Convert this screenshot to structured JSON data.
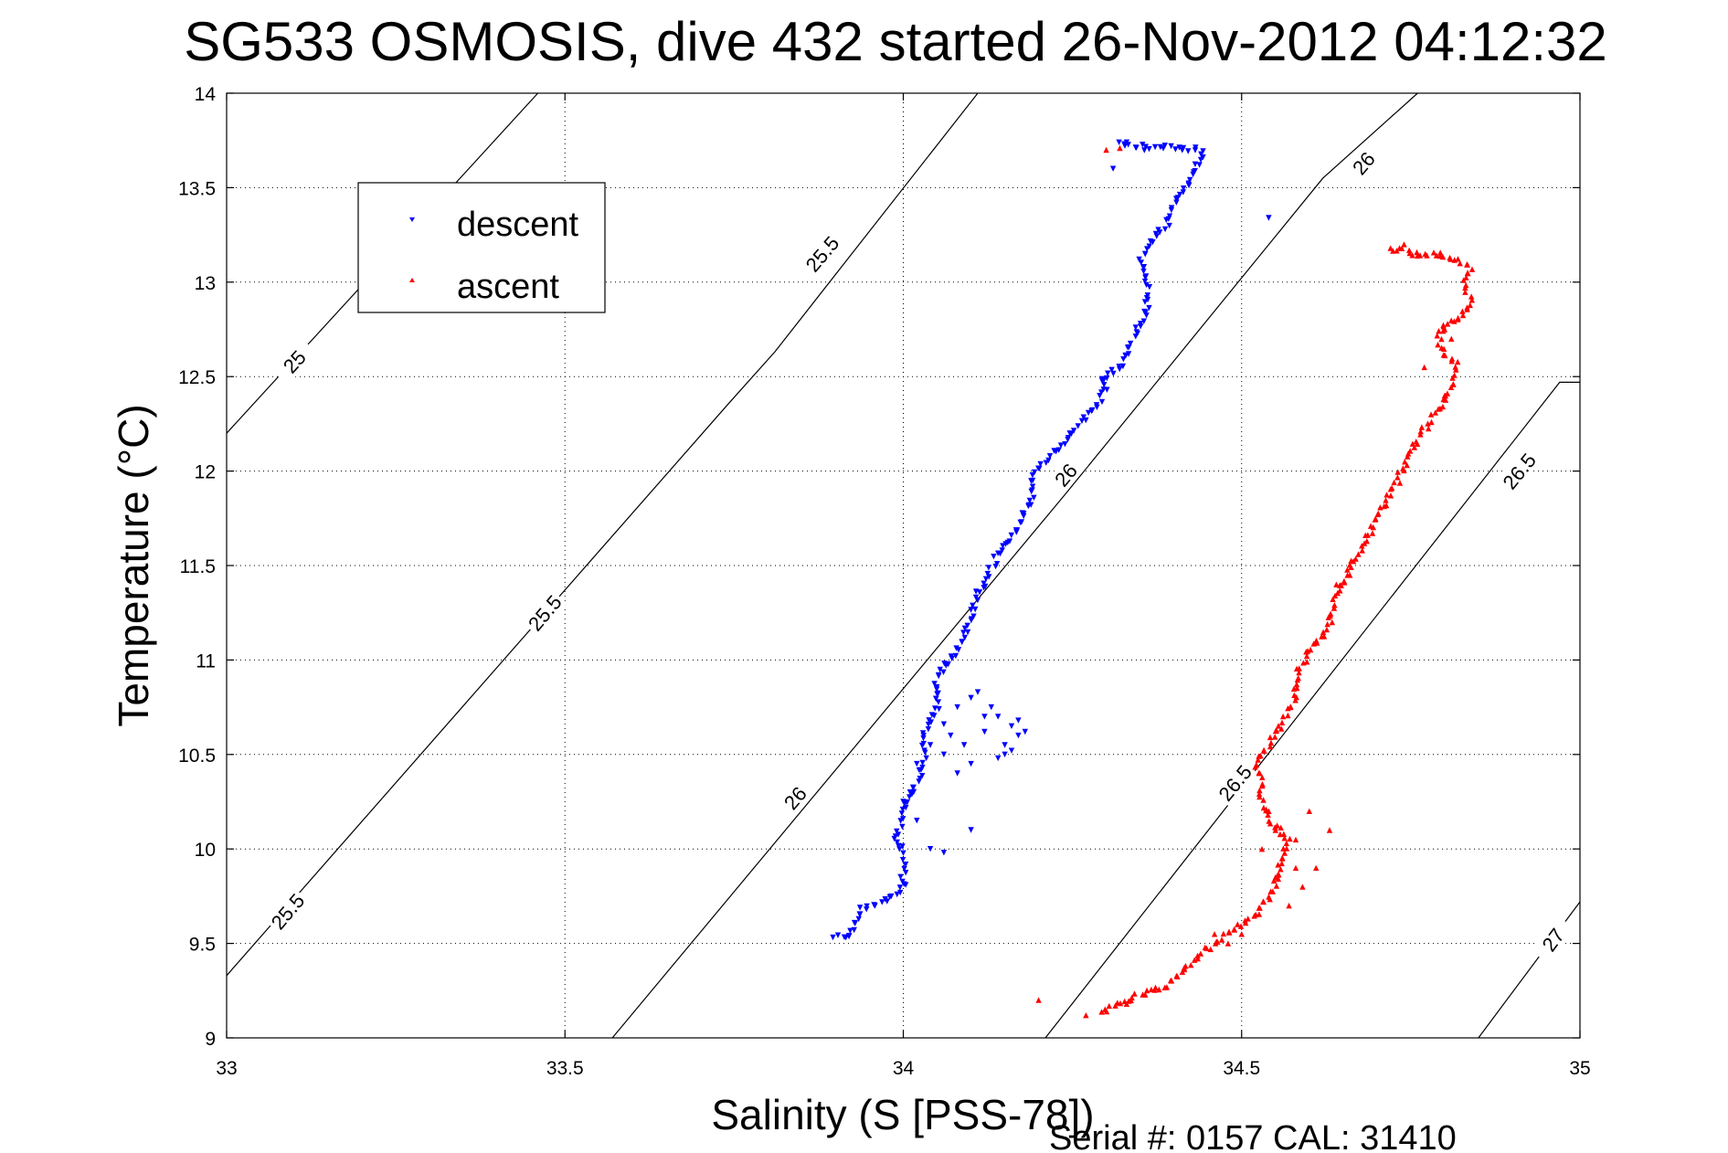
{
  "chart_data": {
    "type": "scatter",
    "title": "SG533 OSMOSIS, dive 432 started 26-Nov-2012 04:12:32",
    "xlabel": "Salinity (S [PSS-78])",
    "ylabel": "Temperature (°C)",
    "footer": "Serial #: 0157  CAL: 31410",
    "xlim": [
      33,
      35
    ],
    "ylim": [
      9,
      14
    ],
    "xticks": [
      "33",
      "33.5",
      "34",
      "34.5",
      "35"
    ],
    "yticks": [
      "9",
      "9.5",
      "10",
      "10.5",
      "11",
      "11.5",
      "12",
      "12.5",
      "13",
      "13.5",
      "14"
    ],
    "grid": true,
    "legend_position": "top-left",
    "series": [
      {
        "name": "descent",
        "marker": "triangle-down",
        "color": "#0000ff",
        "trace": [
          [
            33.9,
            9.53
          ],
          [
            33.92,
            9.53
          ],
          [
            33.94,
            9.68
          ],
          [
            33.97,
            9.72
          ],
          [
            34.0,
            9.8
          ],
          [
            34.0,
            9.97
          ],
          [
            33.99,
            10.05
          ],
          [
            34.0,
            10.22
          ],
          [
            34.02,
            10.35
          ],
          [
            34.03,
            10.42
          ],
          [
            34.03,
            10.6
          ],
          [
            34.05,
            10.75
          ],
          [
            34.05,
            10.92
          ],
          [
            34.08,
            11.05
          ],
          [
            34.1,
            11.22
          ],
          [
            34.11,
            11.35
          ],
          [
            34.14,
            11.55
          ],
          [
            34.17,
            11.7
          ],
          [
            34.19,
            11.85
          ],
          [
            34.19,
            11.98
          ],
          [
            34.23,
            12.12
          ],
          [
            34.27,
            12.28
          ],
          [
            34.3,
            12.42
          ],
          [
            34.29,
            12.48
          ],
          [
            34.32,
            12.55
          ],
          [
            34.34,
            12.7
          ],
          [
            34.36,
            12.85
          ],
          [
            34.36,
            12.92
          ],
          [
            34.36,
            13.02
          ],
          [
            34.35,
            13.1
          ],
          [
            34.36,
            13.2
          ],
          [
            34.39,
            13.3
          ],
          [
            34.4,
            13.42
          ],
          [
            34.42,
            13.5
          ],
          [
            34.43,
            13.58
          ],
          [
            34.44,
            13.65
          ],
          [
            34.44,
            13.7
          ],
          [
            34.4,
            13.71
          ],
          [
            34.36,
            13.71
          ],
          [
            34.33,
            13.72
          ],
          [
            34.32,
            13.74
          ],
          [
            34.33,
            13.74
          ]
        ],
        "points": [
          [
            34.05,
            10.82
          ],
          [
            34.08,
            10.75
          ],
          [
            34.1,
            10.8
          ],
          [
            34.14,
            10.7
          ],
          [
            34.16,
            10.65
          ],
          [
            34.17,
            10.6
          ],
          [
            34.16,
            10.52
          ],
          [
            34.14,
            10.48
          ],
          [
            34.1,
            10.45
          ],
          [
            34.06,
            10.5
          ],
          [
            34.04,
            10.55
          ],
          [
            34.07,
            10.6
          ],
          [
            34.12,
            10.62
          ],
          [
            34.15,
            10.55
          ],
          [
            34.17,
            10.68
          ],
          [
            34.18,
            10.62
          ],
          [
            34.13,
            10.75
          ],
          [
            34.11,
            10.83
          ],
          [
            34.06,
            10.66
          ],
          [
            34.02,
            10.45
          ],
          [
            34.01,
            10.3
          ],
          [
            34.02,
            10.15
          ],
          [
            34.04,
            10.0
          ],
          [
            34.06,
            9.98
          ],
          [
            34.1,
            10.1
          ],
          [
            34.09,
            10.55
          ],
          [
            34.12,
            10.7
          ],
          [
            34.31,
            13.6
          ],
          [
            34.54,
            13.34
          ],
          [
            34.15,
            10.5
          ],
          [
            34.08,
            10.4
          ],
          [
            34.0,
            10.25
          ]
        ]
      },
      {
        "name": "ascent",
        "marker": "triangle-up",
        "color": "#ff0000",
        "trace": [
          [
            34.29,
            9.13
          ],
          [
            34.33,
            9.2
          ],
          [
            34.36,
            9.25
          ],
          [
            34.39,
            9.28
          ],
          [
            34.44,
            9.45
          ],
          [
            34.48,
            9.55
          ],
          [
            34.5,
            9.6
          ],
          [
            34.52,
            9.65
          ],
          [
            34.55,
            9.8
          ],
          [
            34.56,
            9.95
          ],
          [
            34.57,
            10.05
          ],
          [
            34.54,
            10.15
          ],
          [
            34.53,
            10.25
          ],
          [
            34.53,
            10.35
          ],
          [
            34.52,
            10.45
          ],
          [
            34.54,
            10.55
          ],
          [
            34.56,
            10.68
          ],
          [
            34.58,
            10.8
          ],
          [
            34.58,
            10.92
          ],
          [
            34.6,
            11.05
          ],
          [
            34.63,
            11.2
          ],
          [
            34.64,
            11.35
          ],
          [
            34.66,
            11.48
          ],
          [
            34.68,
            11.6
          ],
          [
            34.7,
            11.75
          ],
          [
            34.72,
            11.88
          ],
          [
            34.73,
            11.95
          ],
          [
            34.75,
            12.1
          ],
          [
            34.77,
            12.22
          ],
          [
            34.79,
            12.32
          ],
          [
            34.81,
            12.45
          ],
          [
            34.82,
            12.55
          ],
          [
            34.8,
            12.62
          ],
          [
            34.79,
            12.72
          ],
          [
            34.8,
            12.78
          ],
          [
            34.82,
            12.8
          ],
          [
            34.84,
            12.88
          ],
          [
            34.83,
            12.98
          ],
          [
            34.84,
            13.08
          ],
          [
            34.82,
            13.12
          ],
          [
            34.79,
            13.15
          ],
          [
            34.76,
            13.15
          ],
          [
            34.74,
            13.17
          ],
          [
            34.72,
            13.18
          ]
        ],
        "points": [
          [
            34.2,
            9.2
          ],
          [
            34.27,
            9.12
          ],
          [
            34.33,
            9.18
          ],
          [
            34.46,
            9.55
          ],
          [
            34.48,
            9.5
          ],
          [
            34.5,
            9.55
          ],
          [
            34.53,
            10.0
          ],
          [
            34.55,
            10.1
          ],
          [
            34.56,
            9.95
          ],
          [
            34.58,
            9.9
          ],
          [
            34.59,
            9.8
          ],
          [
            34.61,
            9.9
          ],
          [
            34.63,
            10.1
          ],
          [
            34.6,
            10.2
          ],
          [
            34.58,
            10.05
          ],
          [
            34.55,
            9.85
          ],
          [
            34.57,
            9.7
          ],
          [
            34.54,
            10.2
          ],
          [
            34.3,
            13.7
          ],
          [
            34.32,
            13.71
          ],
          [
            34.64,
            11.4
          ],
          [
            34.66,
            11.45
          ],
          [
            34.77,
            12.55
          ],
          [
            34.8,
            12.4
          ],
          [
            34.74,
            13.2
          ],
          [
            34.76,
            13.14
          ],
          [
            34.8,
            12.75
          ],
          [
            34.81,
            12.7
          ]
        ]
      }
    ],
    "contours": [
      {
        "level": 25,
        "line": [
          [
            33,
            12.2
          ],
          [
            33.46,
            14.0
          ]
        ],
        "labels": [
          {
            "text": "25",
            "at": [
              33.1,
              12.58
            ]
          }
        ]
      },
      {
        "level": 25.5,
        "line": [
          [
            33,
            9.33
          ],
          [
            33.74,
            12.35
          ],
          [
            33.81,
            12.63
          ],
          [
            34.11,
            14.0
          ]
        ],
        "labels": [
          {
            "text": "25.5",
            "at": [
              33.09,
              9.67
            ]
          },
          {
            "text": "25.5",
            "at": [
              33.47,
              11.25
            ]
          },
          {
            "text": "25.5",
            "at": [
              33.88,
              13.15
            ]
          }
        ]
      },
      {
        "level": 26,
        "line": [
          [
            33.57,
            9.0
          ],
          [
            34.24,
            11.88
          ],
          [
            34.62,
            13.55
          ],
          [
            34.76,
            14.0
          ]
        ],
        "labels": [
          {
            "text": "26",
            "at": [
              33.84,
              10.27
            ]
          },
          {
            "text": "26",
            "at": [
              34.24,
              11.98
            ]
          },
          {
            "text": "26",
            "at": [
              34.68,
              13.63
            ]
          }
        ]
      },
      {
        "level": 26.5,
        "line": [
          [
            34.21,
            9.0
          ],
          [
            34.97,
            12.47
          ],
          [
            35.0,
            12.47
          ]
        ],
        "labels": [
          {
            "text": "26.5",
            "at": [
              34.49,
              10.35
            ]
          },
          {
            "text": "26.5",
            "at": [
              34.91,
              12.0
            ]
          }
        ]
      },
      {
        "level": 27,
        "line": [
          [
            34.85,
            9.0
          ],
          [
            35.0,
            9.72
          ]
        ],
        "labels": [
          {
            "text": "27",
            "at": [
              34.96,
              9.52
            ]
          }
        ]
      }
    ]
  }
}
